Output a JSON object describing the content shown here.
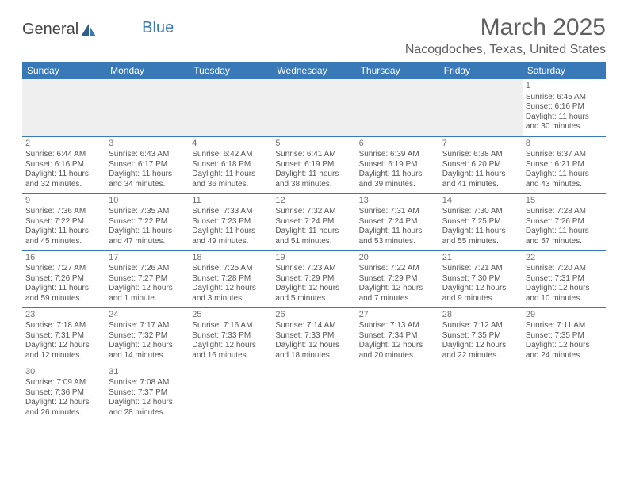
{
  "logo": {
    "general": "General",
    "blue": "Blue"
  },
  "title": "March 2025",
  "location": "Nacogdoches, Texas, United States",
  "weekdays": [
    "Sunday",
    "Monday",
    "Tuesday",
    "Wednesday",
    "Thursday",
    "Friday",
    "Saturday"
  ],
  "colors": {
    "header_bg": "#3a79b7",
    "header_text": "#ffffff",
    "text": "#555555",
    "empty_bg": "#efefef"
  },
  "weeks": [
    [
      null,
      null,
      null,
      null,
      null,
      null,
      {
        "n": "1",
        "sr": "Sunrise: 6:45 AM",
        "ss": "Sunset: 6:16 PM",
        "d1": "Daylight: 11 hours",
        "d2": "and 30 minutes."
      }
    ],
    [
      {
        "n": "2",
        "sr": "Sunrise: 6:44 AM",
        "ss": "Sunset: 6:16 PM",
        "d1": "Daylight: 11 hours",
        "d2": "and 32 minutes."
      },
      {
        "n": "3",
        "sr": "Sunrise: 6:43 AM",
        "ss": "Sunset: 6:17 PM",
        "d1": "Daylight: 11 hours",
        "d2": "and 34 minutes."
      },
      {
        "n": "4",
        "sr": "Sunrise: 6:42 AM",
        "ss": "Sunset: 6:18 PM",
        "d1": "Daylight: 11 hours",
        "d2": "and 36 minutes."
      },
      {
        "n": "5",
        "sr": "Sunrise: 6:41 AM",
        "ss": "Sunset: 6:19 PM",
        "d1": "Daylight: 11 hours",
        "d2": "and 38 minutes."
      },
      {
        "n": "6",
        "sr": "Sunrise: 6:39 AM",
        "ss": "Sunset: 6:19 PM",
        "d1": "Daylight: 11 hours",
        "d2": "and 39 minutes."
      },
      {
        "n": "7",
        "sr": "Sunrise: 6:38 AM",
        "ss": "Sunset: 6:20 PM",
        "d1": "Daylight: 11 hours",
        "d2": "and 41 minutes."
      },
      {
        "n": "8",
        "sr": "Sunrise: 6:37 AM",
        "ss": "Sunset: 6:21 PM",
        "d1": "Daylight: 11 hours",
        "d2": "and 43 minutes."
      }
    ],
    [
      {
        "n": "9",
        "sr": "Sunrise: 7:36 AM",
        "ss": "Sunset: 7:22 PM",
        "d1": "Daylight: 11 hours",
        "d2": "and 45 minutes."
      },
      {
        "n": "10",
        "sr": "Sunrise: 7:35 AM",
        "ss": "Sunset: 7:22 PM",
        "d1": "Daylight: 11 hours",
        "d2": "and 47 minutes."
      },
      {
        "n": "11",
        "sr": "Sunrise: 7:33 AM",
        "ss": "Sunset: 7:23 PM",
        "d1": "Daylight: 11 hours",
        "d2": "and 49 minutes."
      },
      {
        "n": "12",
        "sr": "Sunrise: 7:32 AM",
        "ss": "Sunset: 7:24 PM",
        "d1": "Daylight: 11 hours",
        "d2": "and 51 minutes."
      },
      {
        "n": "13",
        "sr": "Sunrise: 7:31 AM",
        "ss": "Sunset: 7:24 PM",
        "d1": "Daylight: 11 hours",
        "d2": "and 53 minutes."
      },
      {
        "n": "14",
        "sr": "Sunrise: 7:30 AM",
        "ss": "Sunset: 7:25 PM",
        "d1": "Daylight: 11 hours",
        "d2": "and 55 minutes."
      },
      {
        "n": "15",
        "sr": "Sunrise: 7:28 AM",
        "ss": "Sunset: 7:26 PM",
        "d1": "Daylight: 11 hours",
        "d2": "and 57 minutes."
      }
    ],
    [
      {
        "n": "16",
        "sr": "Sunrise: 7:27 AM",
        "ss": "Sunset: 7:26 PM",
        "d1": "Daylight: 11 hours",
        "d2": "and 59 minutes."
      },
      {
        "n": "17",
        "sr": "Sunrise: 7:26 AM",
        "ss": "Sunset: 7:27 PM",
        "d1": "Daylight: 12 hours",
        "d2": "and 1 minute."
      },
      {
        "n": "18",
        "sr": "Sunrise: 7:25 AM",
        "ss": "Sunset: 7:28 PM",
        "d1": "Daylight: 12 hours",
        "d2": "and 3 minutes."
      },
      {
        "n": "19",
        "sr": "Sunrise: 7:23 AM",
        "ss": "Sunset: 7:29 PM",
        "d1": "Daylight: 12 hours",
        "d2": "and 5 minutes."
      },
      {
        "n": "20",
        "sr": "Sunrise: 7:22 AM",
        "ss": "Sunset: 7:29 PM",
        "d1": "Daylight: 12 hours",
        "d2": "and 7 minutes."
      },
      {
        "n": "21",
        "sr": "Sunrise: 7:21 AM",
        "ss": "Sunset: 7:30 PM",
        "d1": "Daylight: 12 hours",
        "d2": "and 9 minutes."
      },
      {
        "n": "22",
        "sr": "Sunrise: 7:20 AM",
        "ss": "Sunset: 7:31 PM",
        "d1": "Daylight: 12 hours",
        "d2": "and 10 minutes."
      }
    ],
    [
      {
        "n": "23",
        "sr": "Sunrise: 7:18 AM",
        "ss": "Sunset: 7:31 PM",
        "d1": "Daylight: 12 hours",
        "d2": "and 12 minutes."
      },
      {
        "n": "24",
        "sr": "Sunrise: 7:17 AM",
        "ss": "Sunset: 7:32 PM",
        "d1": "Daylight: 12 hours",
        "d2": "and 14 minutes."
      },
      {
        "n": "25",
        "sr": "Sunrise: 7:16 AM",
        "ss": "Sunset: 7:33 PM",
        "d1": "Daylight: 12 hours",
        "d2": "and 16 minutes."
      },
      {
        "n": "26",
        "sr": "Sunrise: 7:14 AM",
        "ss": "Sunset: 7:33 PM",
        "d1": "Daylight: 12 hours",
        "d2": "and 18 minutes."
      },
      {
        "n": "27",
        "sr": "Sunrise: 7:13 AM",
        "ss": "Sunset: 7:34 PM",
        "d1": "Daylight: 12 hours",
        "d2": "and 20 minutes."
      },
      {
        "n": "28",
        "sr": "Sunrise: 7:12 AM",
        "ss": "Sunset: 7:35 PM",
        "d1": "Daylight: 12 hours",
        "d2": "and 22 minutes."
      },
      {
        "n": "29",
        "sr": "Sunrise: 7:11 AM",
        "ss": "Sunset: 7:35 PM",
        "d1": "Daylight: 12 hours",
        "d2": "and 24 minutes."
      }
    ],
    [
      {
        "n": "30",
        "sr": "Sunrise: 7:09 AM",
        "ss": "Sunset: 7:36 PM",
        "d1": "Daylight: 12 hours",
        "d2": "and 26 minutes."
      },
      {
        "n": "31",
        "sr": "Sunrise: 7:08 AM",
        "ss": "Sunset: 7:37 PM",
        "d1": "Daylight: 12 hours",
        "d2": "and 28 minutes."
      },
      null,
      null,
      null,
      null,
      null
    ]
  ]
}
